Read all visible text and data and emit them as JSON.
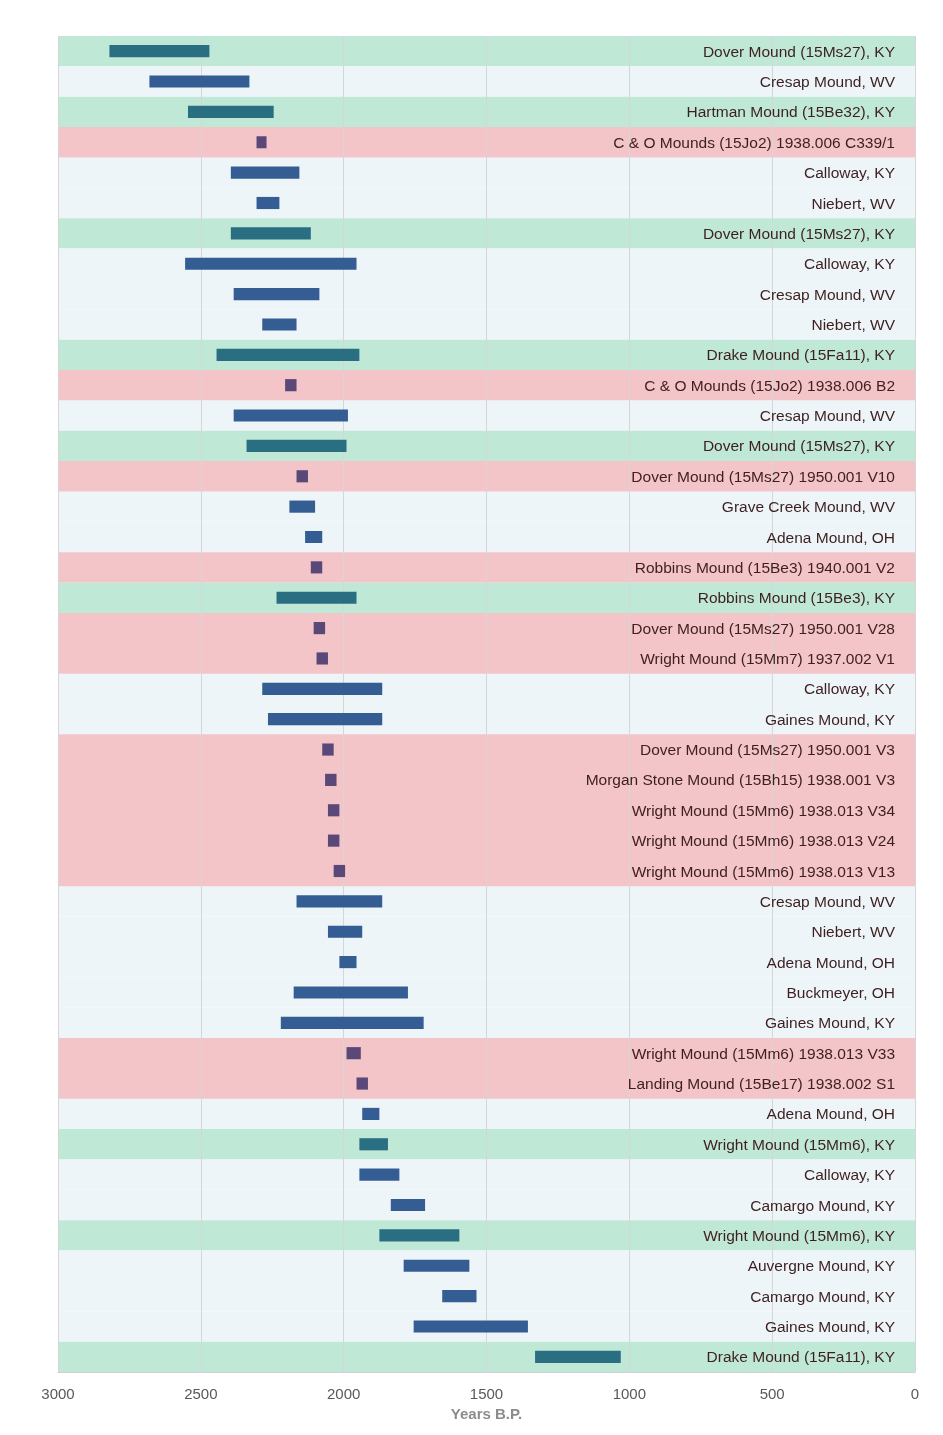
{
  "chart_data": {
    "type": "bar",
    "orientation": "horizontal",
    "xlabel": "Years B.P.",
    "xlim": [
      3000,
      0
    ],
    "xticks": [
      3000,
      2500,
      2000,
      1500,
      1000,
      500,
      0
    ],
    "grid": "x",
    "bands": [
      {
        "axis": "y",
        "from": "C & O Mounds (15Jo2) 1938.006 C339/1",
        "to": "C & O Mounds (15Jo2) 1938.006 C339/1",
        "color": "#f3c4c8"
      },
      {
        "axis": "y",
        "from": "C & O Mounds (15Jo2) 1938.006 B2",
        "to": "C & O Mounds (15Jo2) 1938.006 B2",
        "color": "#f3c4c8"
      },
      {
        "axis": "y",
        "from": "Dover Mound (15Ms27) 1950.001 V10",
        "to": "Dover Mound (15Ms27) 1950.001 V10",
        "color": "#f3c4c8"
      },
      {
        "axis": "y",
        "from": "Robbins Mound (15Be3) 1940.001 V2",
        "to": "Robbins Mound (15Be3) 1940.001 V2",
        "color": "#f3c4c8"
      },
      {
        "axis": "y",
        "from": "Dover Mound (15Ms27) 1950.001 V28",
        "to": "Wright Mound (15Mm7) 1937.002 V1",
        "color": "#f3c4c8"
      },
      {
        "axis": "y",
        "from": "Dover Mound (15Ms27) 1950.001 V3",
        "to": "Wright Mound (15Mm6) 1938.013 V13",
        "color": "#f3c4c8"
      },
      {
        "axis": "y",
        "from": "Wright Mound (15Mm6) 1938.013 V33",
        "to": "Landing Mound (15Be17) 1938.002 S1",
        "color": "#f3c4c8"
      }
    ],
    "categories": [
      "Dover Mound (15Ms27), KY",
      "Cresap Mound, WV",
      "Hartman Mound (15Be32), KY",
      "C & O Mounds (15Jo2) 1938.006 C339/1",
      "Calloway, KY",
      "Niebert, WV",
      "Dover Mound (15Ms27), KY",
      "Calloway, KY",
      "Cresap Mound, WV",
      "Niebert, WV",
      "Drake Mound (15Fa11), KY",
      "C & O Mounds (15Jo2) 1938.006 B2",
      "Cresap Mound, WV",
      "Dover Mound (15Ms27), KY",
      "Dover Mound (15Ms27) 1950.001 V10",
      "Grave Creek Mound, WV",
      "Adena Mound, OH",
      "Robbins Mound (15Be3) 1940.001 V2",
      "Robbins Mound (15Be3), KY",
      "Dover Mound (15Ms27) 1950.001 V28",
      "Wright Mound (15Mm7) 1937.002 V1",
      "Calloway, KY",
      "Gaines Mound, KY",
      "Dover Mound (15Ms27) 1950.001 V3",
      "Morgan Stone Mound (15Bh15) 1938.001 V3",
      "Wright Mound (15Mm6) 1938.013 V34",
      "Wright Mound (15Mm6) 1938.013 V24",
      "Wright Mound (15Mm6) 1938.013 V13",
      "Cresap Mound, WV",
      "Niebert, WV",
      "Adena Mound, OH",
      "Buckmeyer, OH",
      "Gaines Mound, KY",
      "Wright Mound (15Mm6) 1938.013 V33",
      "Landing Mound (15Be17) 1938.002 S1",
      "Adena Mound, OH",
      "Wright Mound (15Mm6), KY",
      "Calloway, KY",
      "Camargo Mound, KY",
      "Wright Mound (15Mm6), KY",
      "Auvergne Mound, KY",
      "Camargo Mound, KY",
      "Gaines Mound, KY",
      "Drake Mound (15Fa11), KY"
    ],
    "series": [
      {
        "color": "#2a6e82",
        "base": [
          2470,
          null,
          2245,
          null,
          null,
          null,
          2115,
          null,
          null,
          null,
          1945,
          null,
          null,
          1990,
          null,
          null,
          null,
          null,
          1955,
          null,
          null,
          null,
          null,
          null,
          null,
          null,
          null,
          null,
          null,
          null,
          null,
          null,
          null,
          null,
          null,
          null,
          1845,
          null,
          null,
          1595,
          null,
          null,
          null,
          1030
        ],
        "values": [
          350,
          null,
          300,
          null,
          null,
          null,
          280,
          null,
          null,
          null,
          500,
          null,
          null,
          350,
          null,
          null,
          null,
          null,
          280,
          null,
          null,
          null,
          null,
          null,
          null,
          null,
          null,
          null,
          null,
          null,
          null,
          null,
          null,
          null,
          null,
          null,
          100,
          null,
          null,
          280,
          null,
          null,
          null,
          300
        ]
      },
      {
        "color": "#5a4878",
        "base": [
          null,
          null,
          null,
          2270,
          null,
          null,
          null,
          null,
          null,
          null,
          null,
          2165,
          null,
          null,
          2125,
          null,
          null,
          2075,
          null,
          2065,
          2055,
          null,
          null,
          2035,
          2025,
          2015,
          2015,
          1995,
          null,
          null,
          null,
          null,
          null,
          1940,
          1915,
          null,
          null,
          null,
          null,
          null,
          null,
          null,
          null,
          null
        ],
        "values": [
          null,
          null,
          null,
          35,
          null,
          null,
          null,
          null,
          null,
          null,
          null,
          40,
          null,
          null,
          40,
          null,
          null,
          40,
          null,
          40,
          40,
          null,
          null,
          40,
          40,
          40,
          40,
          40,
          null,
          null,
          null,
          null,
          null,
          50,
          40,
          null,
          null,
          null,
          null,
          null,
          null,
          null,
          null,
          null
        ]
      },
      {
        "color": "#345d93",
        "base": [
          null,
          2330,
          null,
          null,
          2155,
          2225,
          null,
          1955,
          2085,
          2165,
          null,
          null,
          1985,
          null,
          null,
          2100,
          2075,
          null,
          null,
          null,
          null,
          1865,
          1865,
          null,
          null,
          null,
          null,
          null,
          1865,
          1935,
          1955,
          1775,
          1720,
          null,
          null,
          1875,
          null,
          1805,
          1715,
          null,
          1560,
          1535,
          1355,
          null
        ],
        "values": [
          null,
          350,
          null,
          null,
          240,
          80,
          null,
          600,
          300,
          120,
          null,
          null,
          400,
          null,
          null,
          90,
          60,
          null,
          null,
          null,
          null,
          420,
          400,
          null,
          null,
          null,
          null,
          null,
          300,
          120,
          60,
          400,
          500,
          null,
          null,
          60,
          null,
          140,
          120,
          null,
          230,
          120,
          400,
          null
        ]
      }
    ]
  }
}
